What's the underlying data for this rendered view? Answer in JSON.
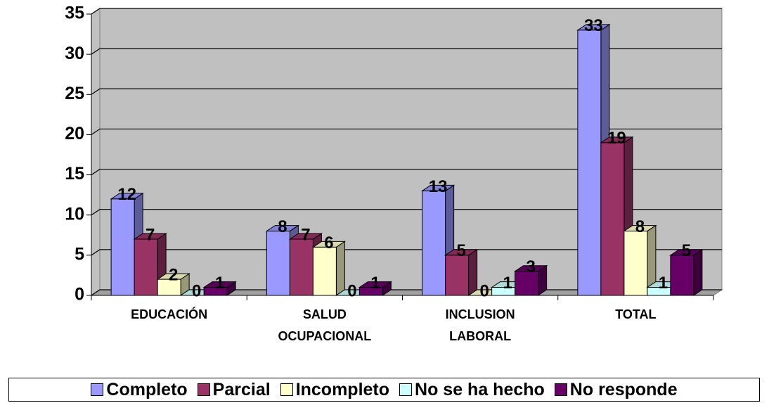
{
  "chart_data": {
    "type": "bar3d",
    "categories": [
      "EDUCACIÓN",
      "SALUD OCUPACIONAL",
      "INCLUSION LABORAL",
      "TOTAL"
    ],
    "series": [
      {
        "name": "Completo",
        "color": "#9999ff",
        "values": [
          12,
          8,
          13,
          33
        ]
      },
      {
        "name": "Parcial",
        "color": "#993366",
        "values": [
          7,
          7,
          5,
          19
        ]
      },
      {
        "name": "Incompleto",
        "color": "#ffffcc",
        "values": [
          2,
          6,
          0,
          8
        ]
      },
      {
        "name": "No se ha hecho",
        "color": "#ccffff",
        "values": [
          0,
          0,
          1,
          1
        ]
      },
      {
        "name": "No responde",
        "color": "#660066",
        "values": [
          1,
          1,
          3,
          5
        ]
      }
    ],
    "ylim": [
      0,
      35
    ],
    "yticks": [
      0,
      5,
      10,
      15,
      20,
      25,
      30,
      35
    ],
    "grid": true,
    "legend": "bottom"
  }
}
